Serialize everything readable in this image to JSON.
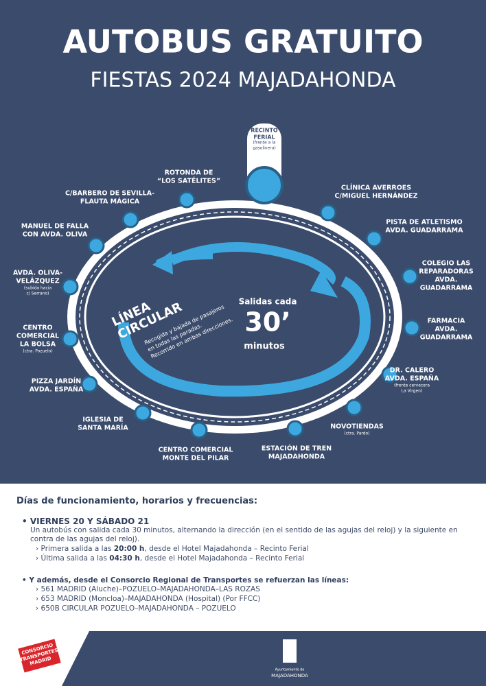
{
  "header": {
    "title": "AUTOBUS GRATUITO",
    "subtitle": "FIESTAS 2024 MAJADAHONDA"
  },
  "route": {
    "name_lines": [
      "LÍNEA",
      "CIRCULAR"
    ],
    "description_lines": [
      "Recogida y bajada de pasajeros",
      "en todas las paradas.",
      "Recorrido en ambas direcciones."
    ],
    "frequency": {
      "label": "Salidas cada",
      "value": "30’",
      "unit": "minutos"
    }
  },
  "stops": [
    {
      "lines": [
        "RECINTO",
        "FERIAL"
      ],
      "note": [
        "(frente a la",
        "gasolinera)"
      ]
    },
    {
      "lines": [
        "CLÍNICA AVERROES",
        "C/MIGUEL HERNÁNDEZ"
      ]
    },
    {
      "lines": [
        "PISTA DE ATLETISMO",
        "AVDA. GUADARRAMA"
      ]
    },
    {
      "lines": [
        "COLEGIO LAS",
        "REPARADORAS",
        "AVDA.",
        "GUADARRAMA"
      ]
    },
    {
      "lines": [
        "FARMACIA",
        "AVDA.",
        "GUADARRAMA"
      ]
    },
    {
      "lines": [
        "DR. CALERO",
        "AVDA. ESPAÑA"
      ],
      "note": [
        "(frente cervecera",
        "La Virgen)"
      ]
    },
    {
      "lines": [
        "NOVOTIENDAS"
      ],
      "note": [
        "(ctra. Pardo)"
      ]
    },
    {
      "lines": [
        "ESTACIÓN DE TREN",
        "MAJADAHONDA"
      ]
    },
    {
      "lines": [
        "CENTRO COMERCIAL",
        "MONTE DEL PILAR"
      ]
    },
    {
      "lines": [
        "IGLESIA DE",
        "SANTA MARÍA"
      ]
    },
    {
      "lines": [
        "PIZZA JARDÍN",
        "AVDA. ESPAÑA"
      ]
    },
    {
      "lines": [
        "CENTRO",
        "COMERCIAL",
        "LA BOLSA"
      ],
      "note": [
        "(ctra. Pozuelo)"
      ]
    },
    {
      "lines": [
        "AVDA. OLIVA-",
        "VELÁZQUEZ"
      ],
      "note": [
        "(subida hacia",
        "c/ Serrano)"
      ]
    },
    {
      "lines": [
        "MANUEL DE FALLA",
        "CON AVDA. OLIVA"
      ]
    },
    {
      "lines": [
        "C/BARBERO DE SEVILLA-",
        "FLAUTA MÁGICA"
      ]
    },
    {
      "lines": [
        "ROTONDA DE",
        "“LOS SATÉLITES”"
      ]
    }
  ],
  "schedule": {
    "heading": "Días de funcionamiento, horarios y frecuencias:",
    "days": "VIERNES 20 Y SÁBADO 21",
    "text": "Un autobús con salida cada 30 minutos, alternando la dirección (en el sentido de las agujas del reloj) y la siguiente en contra de las agujas del reloj).",
    "departures": [
      {
        "before": "Primera salida a las ",
        "time": "20:00 h",
        "after": ", desde el Hotel Majadahonda – Recinto Ferial"
      },
      {
        "before": "Última salida a las ",
        "time": "04:30 h",
        "after": ", desde el Hotel Majadahonda – Recinto Ferial"
      }
    ],
    "extra": "Y además, desde el Consorcio Regional de Transportes se refuerzan las líneas:",
    "lines": [
      "561 MADRID (Aluche)–POZUELO–MAJADAHONDA–LAS ROZAS",
      "653 MADRID (Moncloa)–MAJADAHONDA (Hospital) (Por FFCC)",
      "650B CIRCULAR POZUELO–MAJADAHONDA – POZUELO"
    ]
  },
  "footer": {
    "consorcio": [
      "CONSORCIO",
      "TRANSPORTES",
      "MADRID"
    ],
    "ayuntamiento": [
      "Ayuntamiento de",
      "MAJADAHONDA"
    ]
  }
}
